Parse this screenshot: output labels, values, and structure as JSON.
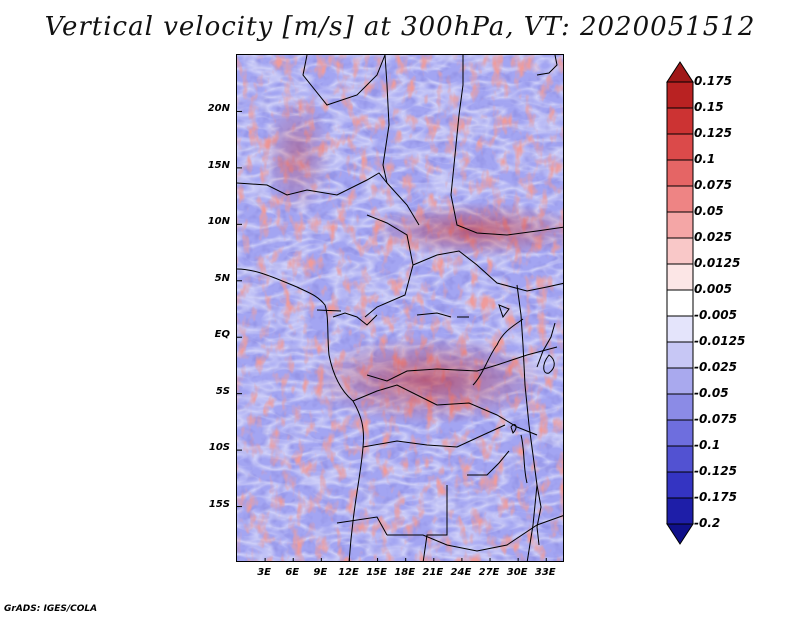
{
  "title": "Vertical velocity [m/s] at 300hPa, VT: 2020051512",
  "footer": "GrADS: IGES/COLA",
  "map": {
    "lat_labels": [
      "20N",
      "15N",
      "10N",
      "5N",
      "EQ",
      "5S",
      "10S",
      "15S"
    ],
    "lat_values": [
      20,
      15,
      10,
      5,
      0,
      -5,
      -10,
      -15
    ],
    "lon_labels": [
      "3E",
      "6E",
      "9E",
      "12E",
      "15E",
      "18E",
      "21E",
      "24E",
      "27E",
      "30E",
      "33E"
    ],
    "lon_values": [
      3,
      6,
      9,
      12,
      15,
      18,
      21,
      24,
      27,
      30,
      33
    ],
    "lon_range": [
      0,
      35
    ],
    "lat_range": [
      -20,
      25
    ]
  },
  "colorbar": {
    "labels": [
      "0.175",
      "0.15",
      "0.125",
      "0.1",
      "0.075",
      "0.05",
      "0.025",
      "0.0125",
      "0.005",
      "-0.005",
      "-0.0125",
      "-0.025",
      "-0.05",
      "-0.075",
      "-0.1",
      "-0.125",
      "-0.175",
      "-0.2"
    ],
    "colors": [
      "#a01818",
      "#b92222",
      "#cc3333",
      "#db4a4a",
      "#e56565",
      "#ee8484",
      "#f4a6a6",
      "#f9c8c8",
      "#fce6e6",
      "#ffffff",
      "#e4e4fb",
      "#c7c7f5",
      "#a9a9ee",
      "#8b8be6",
      "#6e6ede",
      "#5252d2",
      "#3434c2",
      "#1e1ea8",
      "#10108a"
    ]
  }
}
